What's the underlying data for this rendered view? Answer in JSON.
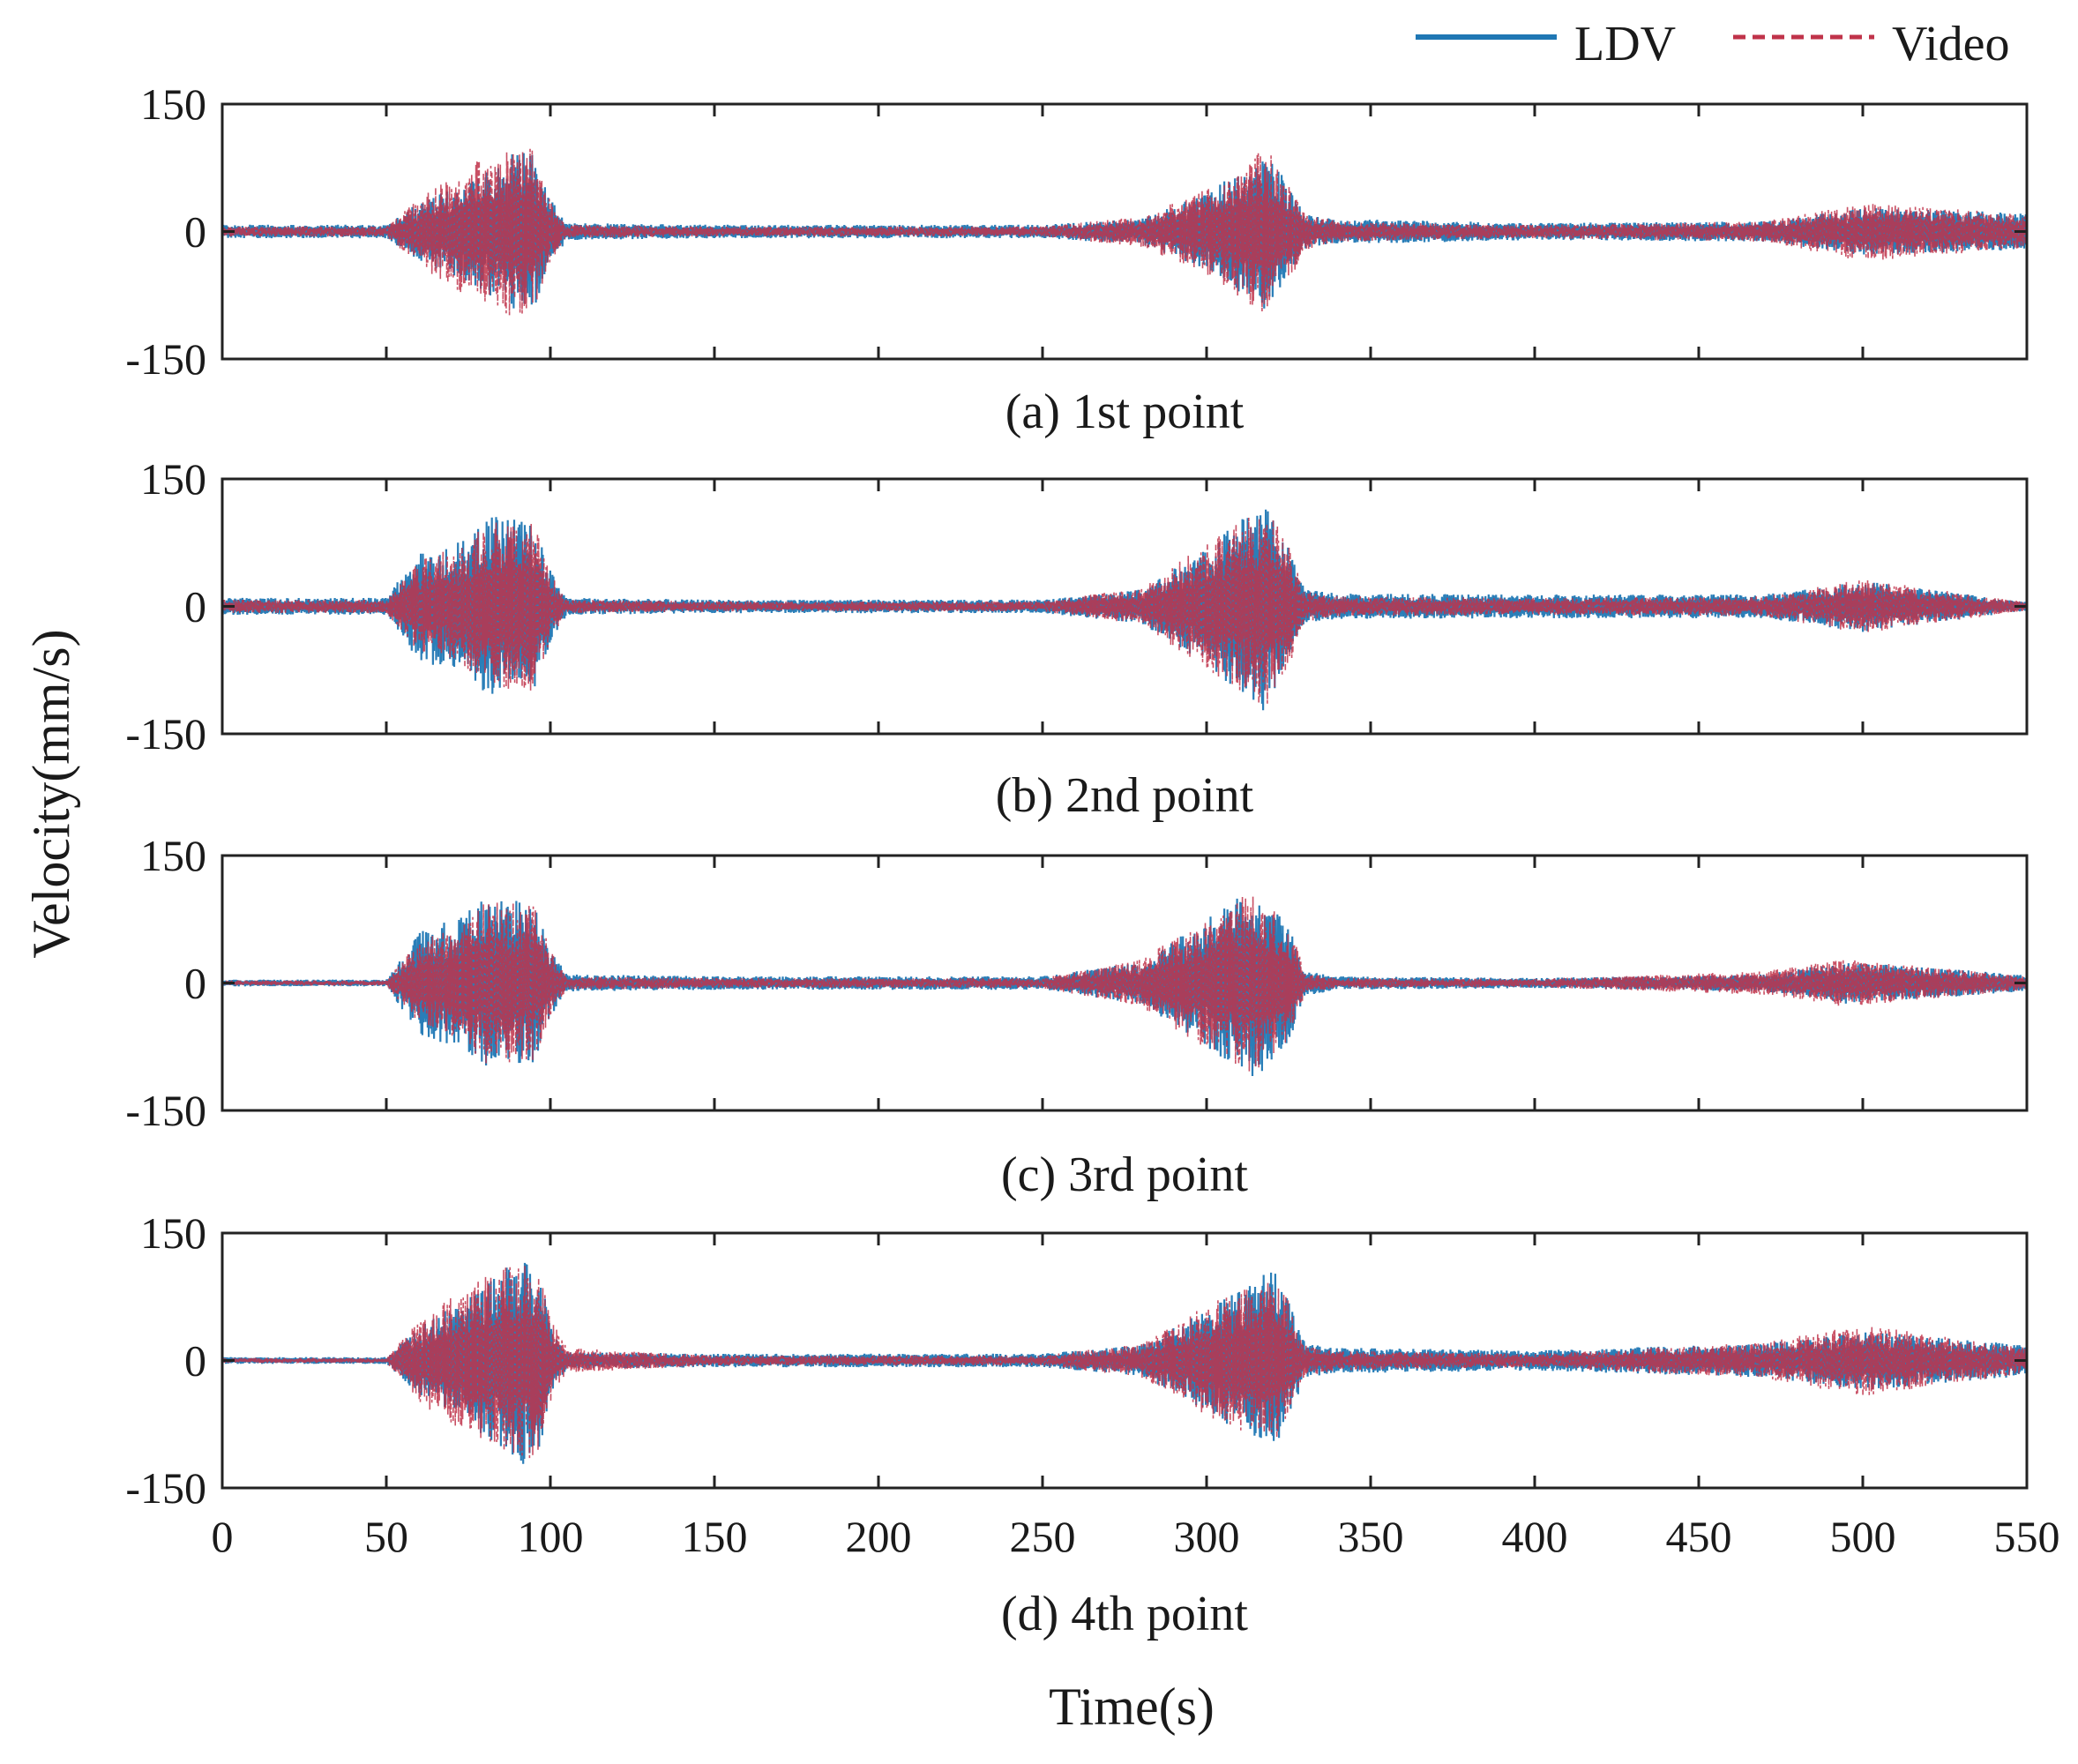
{
  "chart_data": {
    "type": "line",
    "ylabel": "Velocity(mm/s)",
    "xlabel": "Time(s)",
    "xlim": [
      0,
      550
    ],
    "ylim": [
      -150,
      150
    ],
    "x_ticks": [
      0,
      50,
      100,
      150,
      200,
      250,
      300,
      350,
      400,
      450,
      500,
      550
    ],
    "y_ticks": [
      -150,
      0,
      150
    ],
    "legend": {
      "position": "top-right",
      "entries": [
        {
          "name": "LDV",
          "color": "#1f77b4",
          "style": "solid"
        },
        {
          "name": "Video",
          "color": "#c0334a",
          "style": "dashed"
        }
      ]
    },
    "note": "Envelope amplitudes (mm/s) of oscillating velocity signals, estimated from the plot",
    "panels": [
      {
        "caption": "(a) 1st point",
        "envelopes": {
          "LDV": {
            "time": [
              0,
              50,
              60,
              75,
              90,
              95,
              100,
              105,
              150,
              250,
              280,
              300,
              318,
              325,
              330,
              340,
              400,
              470,
              500,
              550
            ],
            "amplitude": [
              8,
              8,
              35,
              60,
              95,
              90,
              40,
              10,
              8,
              8,
              15,
              45,
              95,
              55,
              20,
              15,
              10,
              12,
              28,
              22
            ]
          },
          "Video": {
            "time": [
              0,
              50,
              60,
              75,
              90,
              95,
              100,
              105,
              150,
              250,
              280,
              300,
              318,
              325,
              330,
              340,
              400,
              470,
              500,
              550
            ],
            "amplitude": [
              6,
              6,
              40,
              80,
              105,
              95,
              35,
              8,
              6,
              6,
              18,
              50,
              100,
              60,
              22,
              12,
              8,
              12,
              35,
              20
            ]
          }
        }
      },
      {
        "caption": "(b) 2nd point",
        "envelopes": {
          "LDV": {
            "time": [
              0,
              50,
              60,
              75,
              80,
              95,
              100,
              105,
              150,
              250,
              280,
              300,
              318,
              325,
              330,
              340,
              400,
              470,
              500,
              550
            ],
            "amplitude": [
              10,
              10,
              65,
              80,
              110,
              100,
              45,
              10,
              8,
              8,
              20,
              70,
              125,
              70,
              20,
              15,
              14,
              14,
              30,
              5
            ]
          },
          "Video": {
            "time": [
              0,
              50,
              60,
              75,
              80,
              95,
              100,
              105,
              150,
              250,
              280,
              300,
              318,
              325,
              330,
              340,
              400,
              470,
              500,
              550
            ],
            "amplitude": [
              8,
              8,
              55,
              75,
              100,
              100,
              40,
              8,
              6,
              6,
              22,
              75,
              120,
              72,
              18,
              12,
              10,
              12,
              32,
              5
            ]
          }
        }
      },
      {
        "caption": "(c) 3rd point",
        "envelopes": {
          "LDV": {
            "time": [
              0,
              50,
              60,
              75,
              80,
              95,
              100,
              105,
              150,
              250,
              280,
              300,
              315,
              325,
              330,
              340,
              400,
              470,
              495,
              550
            ],
            "amplitude": [
              4,
              4,
              60,
              85,
              100,
              95,
              40,
              10,
              8,
              8,
              25,
              75,
              115,
              70,
              15,
              8,
              6,
              10,
              25,
              10
            ]
          },
          "Video": {
            "time": [
              0,
              50,
              60,
              75,
              80,
              95,
              100,
              105,
              150,
              250,
              280,
              300,
              315,
              325,
              330,
              340,
              400,
              470,
              495,
              550
            ],
            "amplitude": [
              3,
              3,
              50,
              75,
              95,
              95,
              38,
              8,
              6,
              6,
              28,
              80,
              110,
              72,
              12,
              6,
              5,
              14,
              28,
              8
            ]
          }
        }
      },
      {
        "caption": "(d) 4th point",
        "envelopes": {
          "LDV": {
            "time": [
              0,
              50,
              60,
              75,
              92,
              97,
              100,
              105,
              150,
              250,
              280,
              300,
              320,
              325,
              330,
              340,
              400,
              470,
              500,
              550
            ],
            "amplitude": [
              4,
              4,
              40,
              75,
              125,
              100,
              40,
              10,
              8,
              8,
              18,
              60,
              110,
              70,
              20,
              15,
              12,
              20,
              35,
              18
            ]
          },
          "Video": {
            "time": [
              0,
              50,
              60,
              75,
              92,
              97,
              100,
              105,
              150,
              250,
              280,
              300,
              320,
              325,
              330,
              340,
              400,
              470,
              500,
              550
            ],
            "amplitude": [
              3,
              3,
              50,
              90,
              120,
              105,
              50,
              15,
              6,
              6,
              20,
              65,
              100,
              72,
              18,
              12,
              8,
              22,
              42,
              15
            ]
          }
        }
      }
    ]
  }
}
